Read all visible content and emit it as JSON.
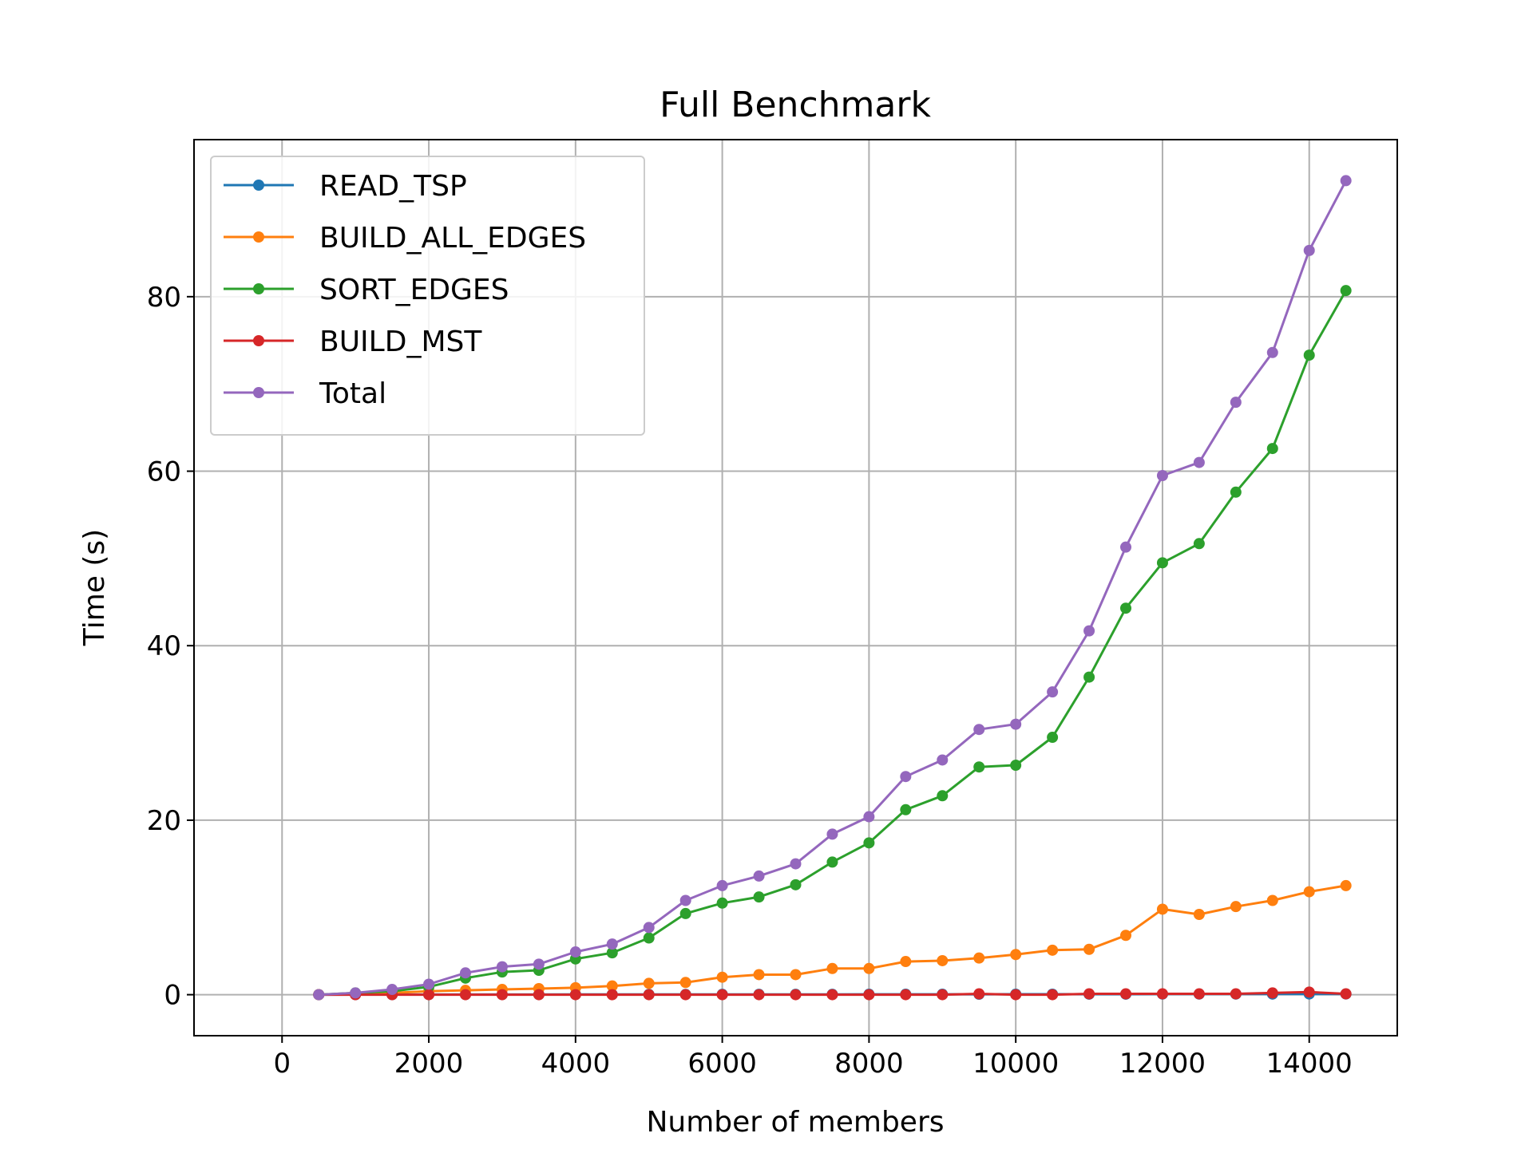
{
  "chart_data": {
    "type": "line",
    "title": "Full Benchmark",
    "xlabel": "Number of members",
    "ylabel": "Time (s)",
    "xlim": [
      -1200,
      15200
    ],
    "ylim": [
      -4.7,
      98
    ],
    "x_ticks": [
      0,
      2000,
      4000,
      6000,
      8000,
      10000,
      12000,
      14000
    ],
    "x_tick_labels": [
      "0",
      "2000",
      "4000",
      "6000",
      "8000",
      "10000",
      "12000",
      "14000"
    ],
    "y_ticks": [
      0,
      20,
      40,
      60,
      80
    ],
    "y_tick_labels": [
      "0",
      "20",
      "40",
      "60",
      "80"
    ],
    "grid": true,
    "legend_position": "upper-left",
    "x": [
      500,
      1000,
      1500,
      2000,
      2500,
      3000,
      3500,
      4000,
      4500,
      5000,
      5500,
      6000,
      6500,
      7000,
      7500,
      8000,
      8500,
      9000,
      9500,
      10000,
      10500,
      11000,
      11500,
      12000,
      12500,
      13000,
      13500,
      14000,
      14500
    ],
    "series": [
      {
        "name": "READ_TSP",
        "color": "#1f77b4",
        "values": [
          0.0,
          0.01,
          0.01,
          0.02,
          0.02,
          0.02,
          0.02,
          0.03,
          0.03,
          0.03,
          0.03,
          0.04,
          0.04,
          0.04,
          0.04,
          0.05,
          0.05,
          0.05,
          0.05,
          0.06,
          0.06,
          0.06,
          0.06,
          0.07,
          0.07,
          0.07,
          0.07,
          0.08,
          0.08
        ]
      },
      {
        "name": "BUILD_ALL_EDGES",
        "color": "#ff7f0e",
        "values": [
          0.0,
          0.1,
          0.2,
          0.4,
          0.5,
          0.6,
          0.7,
          0.8,
          1.0,
          1.3,
          1.4,
          2.0,
          2.3,
          2.3,
          3.0,
          3.0,
          3.8,
          3.9,
          4.2,
          4.6,
          5.1,
          5.2,
          6.8,
          9.8,
          9.2,
          10.1,
          10.8,
          11.8,
          12.5
        ]
      },
      {
        "name": "SORT_EDGES",
        "color": "#2ca02c",
        "values": [
          0.0,
          0.2,
          0.4,
          0.9,
          1.9,
          2.6,
          2.8,
          4.1,
          4.8,
          6.5,
          9.3,
          10.5,
          11.2,
          12.6,
          15.2,
          17.4,
          21.2,
          22.8,
          26.1,
          26.3,
          29.5,
          36.4,
          44.3,
          49.5,
          51.7,
          57.6,
          62.6,
          73.3,
          80.7
        ]
      },
      {
        "name": "BUILD_MST",
        "color": "#d62728",
        "values": [
          0.0,
          0.0,
          0.0,
          0.0,
          0.0,
          0.0,
          0.0,
          0.0,
          0.0,
          0.0,
          0.0,
          0.0,
          0.0,
          0.0,
          0.0,
          0.0,
          0.0,
          0.0,
          0.1,
          0.0,
          0.0,
          0.1,
          0.1,
          0.1,
          0.1,
          0.1,
          0.2,
          0.3,
          0.1
        ]
      },
      {
        "name": "Total",
        "color": "#9467bd",
        "values": [
          0.0,
          0.2,
          0.6,
          1.2,
          2.5,
          3.2,
          3.5,
          4.9,
          5.8,
          7.7,
          10.8,
          12.5,
          13.6,
          15.0,
          18.4,
          20.4,
          25.0,
          26.9,
          30.4,
          31.0,
          34.7,
          41.7,
          51.3,
          59.5,
          61.0,
          67.9,
          73.6,
          85.3,
          93.3
        ]
      }
    ]
  }
}
